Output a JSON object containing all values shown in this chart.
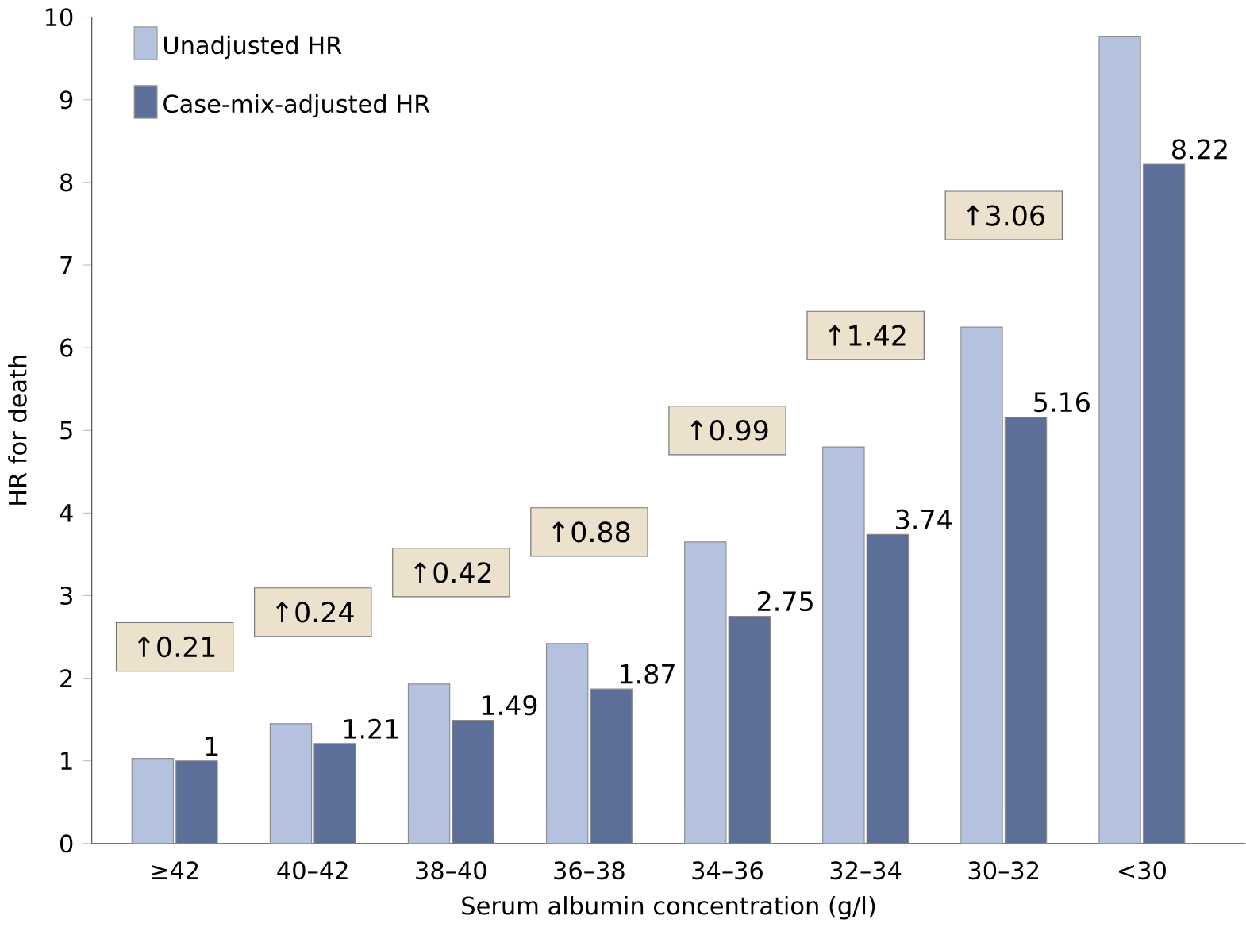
{
  "chart_data": {
    "type": "bar",
    "xlabel": "Serum albumin concentration (g/l)",
    "ylabel": "HR for death",
    "categories": [
      "≥42",
      "40–42",
      "38–40",
      "36–38",
      "34–36",
      "32–34",
      "30–32",
      "<30"
    ],
    "series": [
      {
        "name": "Unadjusted HR",
        "color": "#b4c2e0",
        "values": [
          1.03,
          1.45,
          1.93,
          2.42,
          3.65,
          4.8,
          6.25,
          9.77
        ]
      },
      {
        "name": "Case-mix-adjusted HR",
        "color": "#5b6f98",
        "values": [
          1,
          1.21,
          1.49,
          1.87,
          2.75,
          3.74,
          5.16,
          8.22
        ],
        "value_labels": [
          "1",
          "1.21",
          "1.49",
          "1.87",
          "2.75",
          "3.74",
          "5.16",
          "8.22"
        ]
      }
    ],
    "ylim": [
      0,
      10
    ],
    "yticks": [
      0,
      1,
      2,
      3,
      4,
      5,
      6,
      7,
      8,
      9,
      10
    ],
    "grid": false,
    "legend": "top left",
    "annotations": [
      "↑0.21",
      "↑0.24",
      "↑0.42",
      "↑0.88",
      "↑0.99",
      "↑1.42",
      "↑3.06"
    ]
  }
}
